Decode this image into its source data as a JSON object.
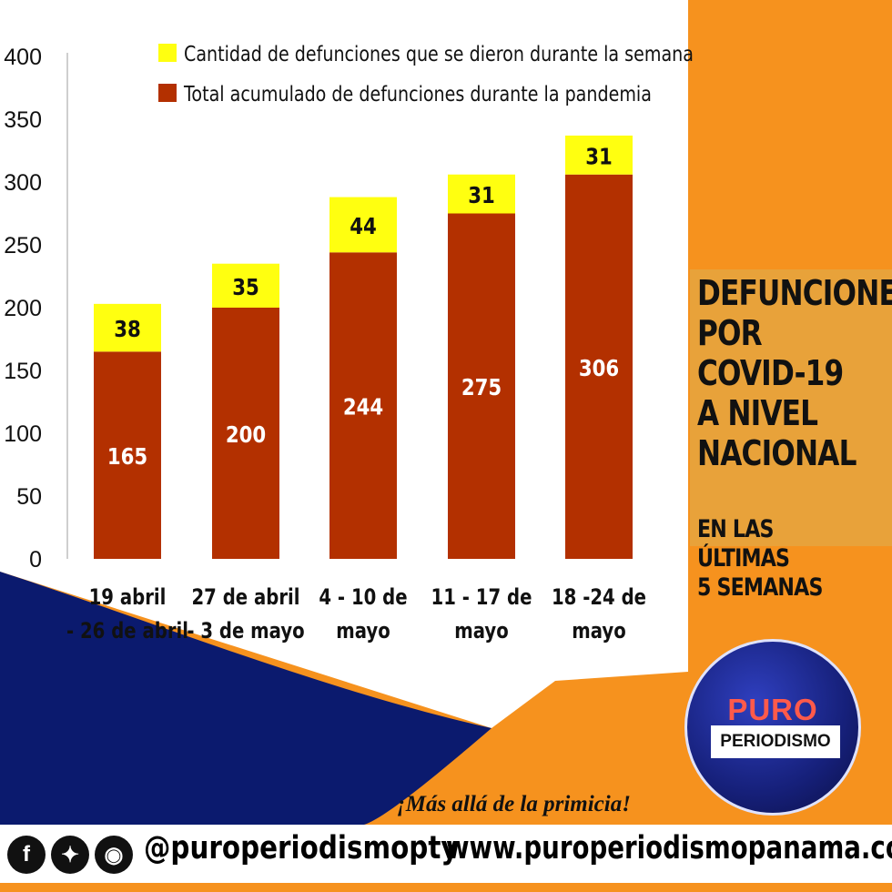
{
  "chart_data": {
    "type": "bar",
    "stacked": true,
    "categories": [
      [
        "19 abril",
        "- 26 de abril"
      ],
      [
        "27 de abril",
        "- 3 de mayo"
      ],
      [
        "4 - 10 de",
        "mayo"
      ],
      [
        "11 - 17 de",
        "mayo"
      ],
      [
        "18 -24 de",
        "mayo"
      ]
    ],
    "series": [
      {
        "name": "Total acumulado de defunciones durante la pandemia",
        "values": [
          165,
          200,
          244,
          275,
          306
        ],
        "color": "#b33000"
      },
      {
        "name": "Cantidad de defunciones que se dieron durante la semana",
        "values": [
          38,
          35,
          44,
          31,
          31
        ],
        "color": "#ffff10"
      }
    ],
    "yticks": [
      0,
      50,
      100,
      150,
      200,
      250,
      300,
      350,
      400
    ],
    "ylim": [
      0,
      400
    ],
    "legend": [
      {
        "label": "Cantidad de defunciones que se dieron durante la semana",
        "color": "#ffff10"
      },
      {
        "label": "Total acumulado de defunciones durante la pandemia",
        "color": "#b33000"
      }
    ],
    "legend_position": "top",
    "grid": false
  },
  "side_title": {
    "lines": [
      "DEFUNCIONES",
      "POR",
      "COVID-19",
      "A NIVEL",
      "NACIONAL"
    ],
    "sub_lines": [
      "EN LAS ÚLTIMAS",
      "5 SEMANAS"
    ]
  },
  "logo": {
    "top": "PURO",
    "bottom": "PERIODISMO"
  },
  "slogan": "¡Más allá de la primicia!",
  "footer": {
    "handle": "@puroperiodismopty",
    "website": "www.puroperiodismopanama.com",
    "social_icons": [
      "facebook-icon",
      "twitter-icon",
      "instagram-icon"
    ]
  },
  "colors": {
    "orange": "#f6921e",
    "navy": "#0b1a6e",
    "white_panel": "#ffffff"
  }
}
